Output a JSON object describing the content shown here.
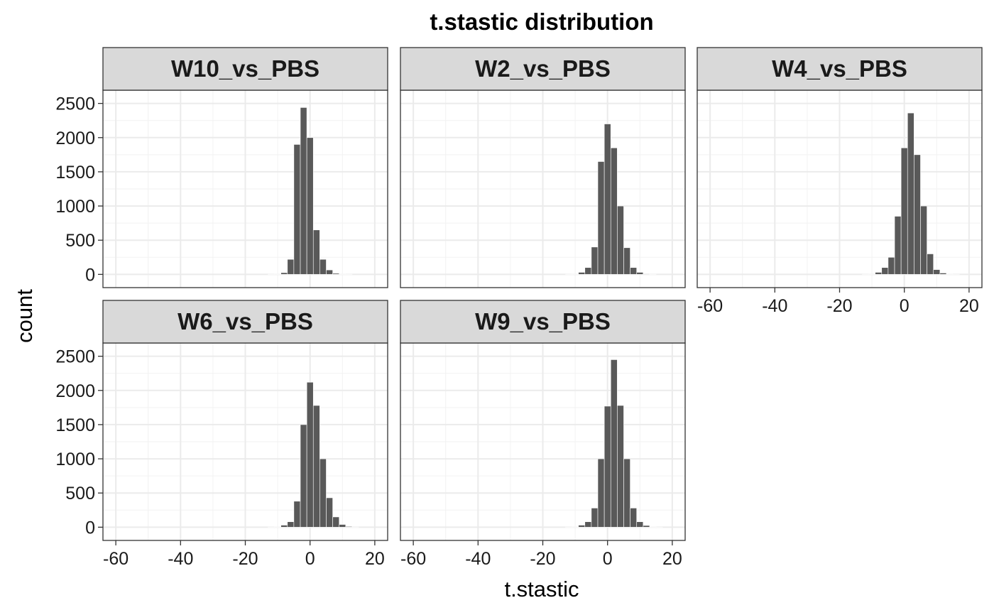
{
  "chart_data": {
    "type": "bar",
    "subtype": "histogram",
    "title": "t.stastic distribution",
    "xlabel": "t.stastic",
    "ylabel": "count",
    "bin_width": 2,
    "bin_centers": [
      -60,
      -58,
      -56,
      -54,
      -52,
      -50,
      -48,
      -46,
      -44,
      -42,
      -40,
      -38,
      -36,
      -34,
      -32,
      -30,
      -28,
      -26,
      -24,
      -22,
      -20,
      -18,
      -16,
      -14,
      -12,
      -10,
      -8,
      -6,
      -4,
      -2,
      0,
      2,
      4,
      6,
      8,
      10,
      12,
      14,
      16,
      18,
      20
    ],
    "xlim": [
      -62,
      22
    ],
    "ylim": [
      -100,
      2600
    ],
    "x_ticks": [
      "-60",
      "-40",
      "-20",
      "0",
      "20"
    ],
    "y_ticks": [
      "0",
      "500",
      "1000",
      "1500",
      "2000",
      "2500"
    ],
    "x_tick_values": [
      -60,
      -40,
      -20,
      0,
      20
    ],
    "y_tick_values": [
      0,
      500,
      1000,
      1500,
      2000,
      2500
    ],
    "theme": "bw",
    "grid": true,
    "bar_color": "#595959",
    "strip_fill": "#d9d9d9",
    "panels": [
      {
        "strip": "W10_vs_PBS",
        "counts": [
          0,
          0,
          0,
          0,
          0,
          0,
          0,
          0,
          0,
          0,
          0,
          0,
          0,
          0,
          0,
          0,
          0,
          0,
          0,
          0,
          0,
          0,
          0,
          0,
          2,
          5,
          25,
          220,
          1900,
          2440,
          2000,
          650,
          220,
          65,
          15,
          5,
          2,
          0,
          0,
          0,
          0
        ]
      },
      {
        "strip": "W2_vs_PBS",
        "counts": [
          0,
          0,
          0,
          0,
          0,
          0,
          0,
          0,
          0,
          0,
          0,
          0,
          0,
          0,
          0,
          0,
          0,
          0,
          0,
          0,
          0,
          0,
          0,
          0,
          2,
          5,
          30,
          100,
          400,
          1650,
          2200,
          1850,
          1000,
          390,
          100,
          30,
          8,
          2,
          0,
          0,
          0
        ]
      },
      {
        "strip": "W4_vs_PBS",
        "counts": [
          0,
          0,
          0,
          0,
          0,
          0,
          0,
          0,
          0,
          0,
          0,
          0,
          0,
          0,
          0,
          0,
          0,
          0,
          0,
          0,
          0,
          0,
          0,
          0,
          2,
          5,
          30,
          100,
          250,
          850,
          1850,
          2360,
          1750,
          1000,
          300,
          70,
          20,
          5,
          1,
          0,
          0
        ]
      },
      {
        "strip": "W6_vs_PBS",
        "counts": [
          0,
          0,
          0,
          0,
          0,
          0,
          0,
          0,
          0,
          0,
          0,
          0,
          0,
          0,
          0,
          0,
          0,
          0,
          0,
          0,
          0,
          0,
          0,
          0,
          2,
          5,
          30,
          80,
          380,
          1500,
          2120,
          1780,
          1000,
          430,
          150,
          40,
          10,
          2,
          0,
          0,
          0
        ]
      },
      {
        "strip": "W9_vs_PBS",
        "counts": [
          0,
          0,
          0,
          0,
          0,
          0,
          0,
          0,
          0,
          0,
          0,
          0,
          0,
          0,
          0,
          0,
          0,
          0,
          0,
          0,
          0,
          0,
          0,
          0,
          2,
          5,
          30,
          80,
          280,
          1000,
          1770,
          2450,
          1780,
          1000,
          280,
          80,
          25,
          5,
          1,
          0,
          0
        ]
      }
    ]
  }
}
